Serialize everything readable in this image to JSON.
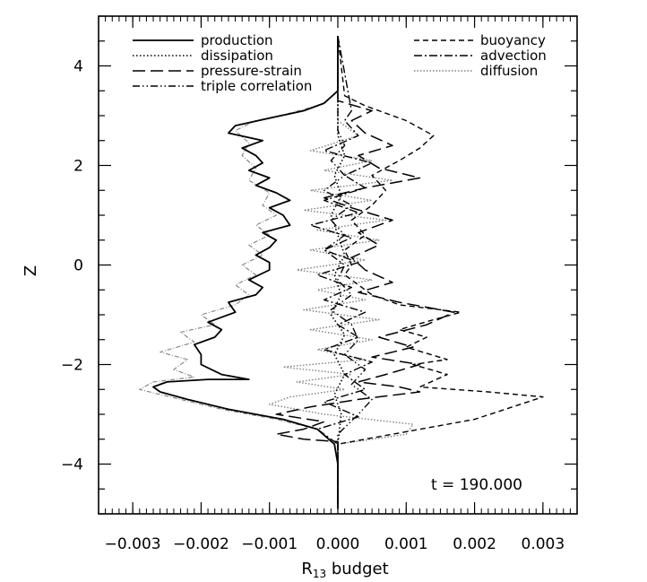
{
  "chart_data": {
    "type": "line",
    "title": "",
    "xlabel_main": "R",
    "xlabel_sub": "13",
    "xlabel_rest": " budget",
    "ylabel": "Z",
    "xlim": [
      -0.0035,
      0.0035
    ],
    "ylim": [
      -5,
      5
    ],
    "x_ticks": [
      -0.003,
      -0.002,
      -0.001,
      0.0,
      0.001,
      0.002,
      0.003
    ],
    "x_tick_labels": [
      "−0.003",
      "−0.002",
      "−0.001",
      "0.000",
      "0.001",
      "0.002",
      "0.003"
    ],
    "y_ticks": [
      -4,
      -2,
      0,
      2,
      4
    ],
    "y_tick_labels": [
      "−4",
      "−2",
      "0",
      "2",
      "4"
    ],
    "grid": false,
    "legend_position": "top",
    "annotation": "t = 190.000",
    "series": [
      {
        "name": "production",
        "style": "solid",
        "color": "#000000",
        "points": [
          [
            0.0,
            -4.9
          ],
          [
            0.0,
            -4.0
          ],
          [
            -5e-05,
            -3.6
          ],
          [
            -0.0003,
            -3.3
          ],
          [
            -0.0008,
            -3.1
          ],
          [
            -0.0016,
            -2.9
          ],
          [
            -0.0022,
            -2.7
          ],
          [
            -0.0026,
            -2.55
          ],
          [
            -0.0027,
            -2.45
          ],
          [
            -0.0025,
            -2.35
          ],
          [
            -0.0019,
            -2.3
          ],
          [
            -0.0013,
            -2.3
          ],
          [
            -0.0017,
            -2.2
          ],
          [
            -0.002,
            -2.0
          ],
          [
            -0.002,
            -1.8
          ],
          [
            -0.0021,
            -1.6
          ],
          [
            -0.0018,
            -1.45
          ],
          [
            -0.0017,
            -1.3
          ],
          [
            -0.0019,
            -1.15
          ],
          [
            -0.0015,
            -0.95
          ],
          [
            -0.0016,
            -0.75
          ],
          [
            -0.0012,
            -0.6
          ],
          [
            -0.0011,
            -0.45
          ],
          [
            -0.0013,
            -0.3
          ],
          [
            -0.001,
            -0.1
          ],
          [
            -0.001,
            0.05
          ],
          [
            -0.0012,
            0.2
          ],
          [
            -0.001,
            0.35
          ],
          [
            -0.0009,
            0.5
          ],
          [
            -0.0011,
            0.65
          ],
          [
            -0.0007,
            0.8
          ],
          [
            -0.0008,
            1.0
          ],
          [
            -0.001,
            1.15
          ],
          [
            -0.0007,
            1.3
          ],
          [
            -0.0009,
            1.45
          ],
          [
            -0.0012,
            1.6
          ],
          [
            -0.001,
            1.75
          ],
          [
            -0.0013,
            1.9
          ],
          [
            -0.0011,
            2.05
          ],
          [
            -0.0012,
            2.2
          ],
          [
            -0.0014,
            2.35
          ],
          [
            -0.0011,
            2.5
          ],
          [
            -0.0016,
            2.65
          ],
          [
            -0.0015,
            2.8
          ],
          [
            -0.001,
            2.95
          ],
          [
            -0.0005,
            3.1
          ],
          [
            -0.0002,
            3.25
          ],
          [
            0.0,
            3.5
          ],
          [
            0.0,
            4.6
          ]
        ]
      },
      {
        "name": "dissipation",
        "style": "dotted",
        "color": "#000000",
        "points": [
          [
            0.0,
            -4.8
          ],
          [
            0.0,
            -3.6
          ],
          [
            5e-05,
            -3.0
          ],
          [
            -5e-05,
            -2.6
          ],
          [
            0.0001,
            -2.2
          ],
          [
            -5e-05,
            -1.8
          ],
          [
            0.0001,
            -1.4
          ],
          [
            -0.0001,
            -1.0
          ],
          [
            5e-05,
            -0.6
          ],
          [
            -5e-05,
            -0.2
          ],
          [
            0.0001,
            0.2
          ],
          [
            0.0,
            0.6
          ],
          [
            -0.0001,
            1.0
          ],
          [
            5e-05,
            1.4
          ],
          [
            -5e-05,
            1.8
          ],
          [
            0.0001,
            2.2
          ],
          [
            0.0,
            2.6
          ],
          [
            0.0,
            3.4
          ],
          [
            0.0,
            4.6
          ]
        ]
      },
      {
        "name": "pressure-strain",
        "style": "longdash",
        "color": "#000000",
        "points": [
          [
            0.0,
            -4.8
          ],
          [
            0.0,
            -3.7
          ],
          [
            0.0,
            -3.55
          ],
          [
            -0.0005,
            -3.5
          ],
          [
            -0.0009,
            -3.4
          ],
          [
            -0.0005,
            -3.3
          ],
          [
            -0.0002,
            -3.15
          ],
          [
            -0.0009,
            -3.0
          ],
          [
            -0.0004,
            -2.85
          ],
          [
            0.0003,
            -2.7
          ],
          [
            0.0012,
            -2.55
          ],
          [
            0.0009,
            -2.45
          ],
          [
            0.0003,
            -2.35
          ],
          [
            0.0007,
            -2.2
          ],
          [
            0.0012,
            -2.0
          ],
          [
            0.0005,
            -1.85
          ],
          [
            0.0011,
            -1.65
          ],
          [
            0.0006,
            -1.45
          ],
          [
            0.0013,
            -1.2
          ],
          [
            0.0017,
            -0.95
          ],
          [
            0.0009,
            -0.75
          ],
          [
            0.0003,
            -0.55
          ],
          [
            0.0008,
            -0.35
          ],
          [
            0.0004,
            -0.1
          ],
          [
            0.0002,
            0.15
          ],
          [
            0.0006,
            0.4
          ],
          [
            0.0003,
            0.65
          ],
          [
            0.0008,
            0.9
          ],
          [
            0.0002,
            1.15
          ],
          [
            -0.0002,
            1.35
          ],
          [
            0.0004,
            1.55
          ],
          [
            0.0012,
            1.75
          ],
          [
            0.0006,
            1.95
          ],
          [
            0.0003,
            2.2
          ],
          [
            0.0008,
            2.4
          ],
          [
            0.0004,
            2.65
          ],
          [
            0.0002,
            2.9
          ],
          [
            0.0005,
            3.1
          ],
          [
            0.0,
            3.3
          ],
          [
            0.0,
            4.6
          ]
        ]
      },
      {
        "name": "triple correlation",
        "style": "dashdotdot",
        "color": "#000000",
        "points": [
          [
            0.0,
            -4.8
          ],
          [
            0.0,
            -3.4
          ],
          [
            0.0003,
            -3.0
          ],
          [
            0.0005,
            -2.7
          ],
          [
            0.0002,
            -2.4
          ],
          [
            0.0004,
            -2.1
          ],
          [
            0.0001,
            -1.8
          ],
          [
            0.0003,
            -1.5
          ],
          [
            0.0002,
            -1.2
          ],
          [
            -0.0001,
            -0.9
          ],
          [
            0.0002,
            -0.6
          ],
          [
            0.0,
            -0.3
          ],
          [
            0.0001,
            0.0
          ],
          [
            -0.0002,
            0.3
          ],
          [
            0.0001,
            0.6
          ],
          [
            -0.0001,
            0.9
          ],
          [
            0.0002,
            1.2
          ],
          [
            -0.0002,
            1.5
          ],
          [
            0.0001,
            1.8
          ],
          [
            -0.0001,
            2.1
          ],
          [
            0.0001,
            2.4
          ],
          [
            0.0,
            2.7
          ],
          [
            0.0,
            3.0
          ],
          [
            0.0,
            4.6
          ]
        ]
      },
      {
        "name": "buoyancy",
        "style": "dashed",
        "color": "#000000",
        "points": [
          [
            0.0,
            -4.8
          ],
          [
            0.0,
            -3.6
          ],
          [
            0.0008,
            -3.4
          ],
          [
            0.002,
            -3.1
          ],
          [
            0.003,
            -2.65
          ],
          [
            0.0022,
            -2.55
          ],
          [
            0.0012,
            -2.45
          ],
          [
            0.0016,
            -2.2
          ],
          [
            0.0011,
            -2.0
          ],
          [
            0.0016,
            -1.9
          ],
          [
            0.001,
            -1.65
          ],
          [
            0.0013,
            -1.45
          ],
          [
            0.0009,
            -1.3
          ],
          [
            0.0014,
            -1.1
          ],
          [
            0.0018,
            -0.95
          ],
          [
            0.0009,
            -0.8
          ],
          [
            0.0005,
            -0.6
          ],
          [
            0.0003,
            -0.4
          ],
          [
            0.0001,
            -0.2
          ],
          [
            0.0002,
            0.0
          ],
          [
            0.0001,
            0.3
          ],
          [
            0.0004,
            0.6
          ],
          [
            0.0002,
            0.9
          ],
          [
            0.0005,
            1.2
          ],
          [
            0.0007,
            1.5
          ],
          [
            0.0005,
            1.8
          ],
          [
            0.0009,
            2.1
          ],
          [
            0.0012,
            2.35
          ],
          [
            0.0014,
            2.6
          ],
          [
            0.001,
            2.9
          ],
          [
            0.0004,
            3.2
          ],
          [
            0.0001,
            3.4
          ],
          [
            0.0,
            4.6
          ]
        ]
      },
      {
        "name": "advection",
        "style": "dashdot",
        "color": "#000000",
        "points": [
          [
            0.0,
            -4.8
          ],
          [
            0.0,
            -3.6
          ],
          [
            -0.0003,
            -3.3
          ],
          [
            0.0003,
            -3.05
          ],
          [
            -0.0002,
            -2.75
          ],
          [
            0.0004,
            -2.5
          ],
          [
            0.0001,
            -2.2
          ],
          [
            0.0005,
            -1.95
          ],
          [
            -0.0002,
            -1.7
          ],
          [
            0.0003,
            -1.45
          ],
          [
            0.0,
            -1.2
          ],
          [
            0.0004,
            -0.95
          ],
          [
            -0.0002,
            -0.7
          ],
          [
            0.0002,
            -0.45
          ],
          [
            -0.0003,
            -0.2
          ],
          [
            0.0003,
            0.05
          ],
          [
            -0.0002,
            0.3
          ],
          [
            0.0002,
            0.55
          ],
          [
            -0.0004,
            0.8
          ],
          [
            0.0003,
            1.05
          ],
          [
            -0.0002,
            1.3
          ],
          [
            0.0004,
            1.55
          ],
          [
            0.0001,
            1.8
          ],
          [
            0.0005,
            2.05
          ],
          [
            -0.0002,
            2.3
          ],
          [
            0.0003,
            2.6
          ],
          [
            0.0001,
            2.9
          ],
          [
            0.0002,
            3.1
          ],
          [
            0.0,
            4.6
          ]
        ]
      },
      {
        "name": "diffusion",
        "style": "dotted-gray",
        "color": "#808080",
        "points": [
          [
            0.0,
            -4.8
          ],
          [
            0.0,
            -3.6
          ],
          [
            0.001,
            -3.4
          ],
          [
            0.0011,
            -3.2
          ],
          [
            -0.0002,
            -3.0
          ],
          [
            -0.001,
            -2.8
          ],
          [
            -0.0007,
            -2.65
          ],
          [
            0.0001,
            -2.5
          ],
          [
            -0.0006,
            -2.35
          ],
          [
            0.0002,
            -2.2
          ],
          [
            -0.0008,
            -2.05
          ],
          [
            0.0004,
            -1.9
          ],
          [
            -0.0003,
            -1.7
          ],
          [
            0.0005,
            -1.5
          ],
          [
            -0.0004,
            -1.3
          ],
          [
            0.0006,
            -1.1
          ],
          [
            -0.0005,
            -0.9
          ],
          [
            0.0004,
            -0.7
          ],
          [
            -0.0003,
            -0.5
          ],
          [
            0.0005,
            -0.3
          ],
          [
            -0.0006,
            -0.1
          ],
          [
            0.0004,
            0.1
          ],
          [
            -0.0004,
            0.3
          ],
          [
            0.0006,
            0.5
          ],
          [
            -0.0003,
            0.7
          ],
          [
            0.0007,
            0.9
          ],
          [
            -0.0005,
            1.1
          ],
          [
            0.0005,
            1.3
          ],
          [
            -0.0004,
            1.5
          ],
          [
            0.0008,
            1.7
          ],
          [
            -0.0002,
            1.9
          ],
          [
            0.0005,
            2.1
          ],
          [
            -0.0004,
            2.3
          ],
          [
            0.0003,
            2.6
          ],
          [
            0.0,
            2.9
          ],
          [
            0.0,
            4.6
          ]
        ]
      },
      {
        "name": "",
        "style": "thin-gray",
        "color": "#808080",
        "points": [
          [
            -0.0003,
            -3.3
          ],
          [
            -0.0009,
            -3.1
          ],
          [
            -0.0017,
            -2.9
          ],
          [
            -0.0023,
            -2.7
          ],
          [
            -0.0029,
            -2.5
          ],
          [
            -0.0027,
            -2.35
          ],
          [
            -0.0021,
            -2.25
          ],
          [
            -0.0024,
            -2.1
          ],
          [
            -0.0022,
            -1.9
          ],
          [
            -0.0026,
            -1.75
          ],
          [
            -0.0021,
            -1.55
          ],
          [
            -0.0023,
            -1.35
          ],
          [
            -0.0018,
            -1.2
          ],
          [
            -0.002,
            -1.0
          ],
          [
            -0.0015,
            -0.8
          ],
          [
            -0.0013,
            -0.6
          ],
          [
            -0.0015,
            -0.4
          ],
          [
            -0.0012,
            -0.2
          ],
          [
            -0.0014,
            0.0
          ],
          [
            -0.0011,
            0.2
          ],
          [
            -0.0013,
            0.4
          ],
          [
            -0.001,
            0.6
          ],
          [
            -0.0012,
            0.8
          ],
          [
            -0.0009,
            1.0
          ],
          [
            -0.0011,
            1.2
          ],
          [
            -0.001,
            1.45
          ],
          [
            -0.0013,
            1.7
          ],
          [
            -0.0012,
            1.95
          ],
          [
            -0.0014,
            2.2
          ],
          [
            -0.0013,
            2.45
          ],
          [
            -0.0015,
            2.7
          ],
          [
            -0.0012,
            2.9
          ],
          [
            -0.0007,
            3.05
          ],
          [
            -0.0003,
            3.2
          ]
        ]
      }
    ]
  }
}
